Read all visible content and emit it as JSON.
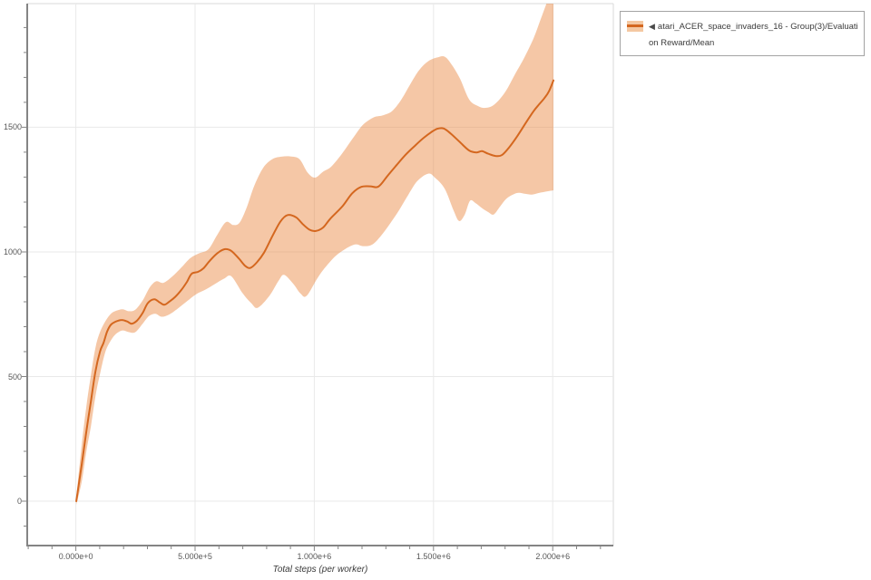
{
  "legend": {
    "marker": "◀",
    "label": "atari_ACER_space_invaders_16 - Group(3)/Evaluation Reward/Mean"
  },
  "chart_data": {
    "type": "line",
    "xlabel": "Total steps (per worker)",
    "ylabel": "",
    "xlim": [
      -204000,
      2254000
    ],
    "ylim": [
      -178,
      1996
    ],
    "grid": "major",
    "x_minor_step": 100000,
    "y_minor_step": 100,
    "x_major_step": 500000,
    "y_major_step": 500,
    "x_ticks": [
      {
        "value": 0,
        "label": "0.000e+0"
      },
      {
        "value": 500000,
        "label": "5.000e+5"
      },
      {
        "value": 1000000,
        "label": "1.000e+6"
      },
      {
        "value": 1500000,
        "label": "1.500e+6"
      },
      {
        "value": 2000000,
        "label": "2.000e+6"
      }
    ],
    "y_ticks": [
      {
        "value": 0,
        "label": "0"
      },
      {
        "value": 500,
        "label": "500"
      },
      {
        "value": 1000,
        "label": "1000"
      },
      {
        "value": 1500,
        "label": "1500"
      }
    ],
    "colors": {
      "line": "#d4671f",
      "band_fill": "rgba(232,131,58,0.45)",
      "gridline": "#e9e9e9",
      "spine": "#848484",
      "border": "#d8d8d8",
      "tick_label": "#575757"
    },
    "series": [
      {
        "name": "atari_ACER_space_invaders_16 - Group(3)/Evaluation Reward/Mean",
        "mean": [
          [
            2000,
            0
          ],
          [
            25000,
            150
          ],
          [
            44000,
            280
          ],
          [
            63000,
            400
          ],
          [
            82000,
            520
          ],
          [
            101000,
            600
          ],
          [
            116000,
            635
          ],
          [
            131000,
            680
          ],
          [
            147000,
            708
          ],
          [
            166000,
            720
          ],
          [
            192000,
            727
          ],
          [
            215000,
            721
          ],
          [
            234000,
            712
          ],
          [
            257000,
            725
          ],
          [
            280000,
            755
          ],
          [
            302000,
            795
          ],
          [
            329000,
            810
          ],
          [
            352000,
            797
          ],
          [
            371000,
            788
          ],
          [
            394000,
            802
          ],
          [
            417000,
            820
          ],
          [
            443000,
            848
          ],
          [
            466000,
            880
          ],
          [
            485000,
            912
          ],
          [
            512000,
            920
          ],
          [
            535000,
            934
          ],
          [
            561000,
            964
          ],
          [
            595000,
            996
          ],
          [
            626000,
            1011
          ],
          [
            652000,
            1004
          ],
          [
            683000,
            974
          ],
          [
            710000,
            944
          ],
          [
            732000,
            936
          ],
          [
            759000,
            958
          ],
          [
            789000,
            997
          ],
          [
            824000,
            1063
          ],
          [
            858000,
            1122
          ],
          [
            888000,
            1148
          ],
          [
            923000,
            1139
          ],
          [
            953000,
            1110
          ],
          [
            980000,
            1089
          ],
          [
            1006000,
            1084
          ],
          [
            1037000,
            1098
          ],
          [
            1067000,
            1133
          ],
          [
            1117000,
            1182
          ],
          [
            1159000,
            1235
          ],
          [
            1197000,
            1261
          ],
          [
            1235000,
            1263
          ],
          [
            1269000,
            1262
          ],
          [
            1307000,
            1305
          ],
          [
            1345000,
            1348
          ],
          [
            1383000,
            1390
          ],
          [
            1421000,
            1425
          ],
          [
            1459000,
            1458
          ],
          [
            1490000,
            1480
          ],
          [
            1516000,
            1494
          ],
          [
            1543000,
            1495
          ],
          [
            1573000,
            1474
          ],
          [
            1611000,
            1440
          ],
          [
            1649000,
            1407
          ],
          [
            1680000,
            1399
          ],
          [
            1703000,
            1404
          ],
          [
            1729000,
            1394
          ],
          [
            1760000,
            1385
          ],
          [
            1786000,
            1388
          ],
          [
            1817000,
            1419
          ],
          [
            1851000,
            1464
          ],
          [
            1889000,
            1521
          ],
          [
            1920000,
            1565
          ],
          [
            1942000,
            1591
          ],
          [
            1965000,
            1617
          ],
          [
            1984000,
            1644
          ],
          [
            2003000,
            1688
          ]
        ],
        "upper": [
          [
            2000,
            15
          ],
          [
            25000,
            230
          ],
          [
            44000,
            380
          ],
          [
            63000,
            505
          ],
          [
            82000,
            615
          ],
          [
            101000,
            678
          ],
          [
            124000,
            722
          ],
          [
            147000,
            752
          ],
          [
            169000,
            764
          ],
          [
            196000,
            770
          ],
          [
            223000,
            762
          ],
          [
            249000,
            768
          ],
          [
            280000,
            805
          ],
          [
            310000,
            858
          ],
          [
            337000,
            882
          ],
          [
            367000,
            876
          ],
          [
            405000,
            902
          ],
          [
            443000,
            938
          ],
          [
            481000,
            976
          ],
          [
            519000,
            995
          ],
          [
            557000,
            1012
          ],
          [
            595000,
            1072
          ],
          [
            630000,
            1120
          ],
          [
            660000,
            1108
          ],
          [
            687000,
            1118
          ],
          [
            717000,
            1180
          ],
          [
            748000,
            1265
          ],
          [
            786000,
            1338
          ],
          [
            824000,
            1372
          ],
          [
            862000,
            1382
          ],
          [
            900000,
            1383
          ],
          [
            938000,
            1372
          ],
          [
            972000,
            1318
          ],
          [
            1003000,
            1298
          ],
          [
            1037000,
            1322
          ],
          [
            1071000,
            1342
          ],
          [
            1117000,
            1395
          ],
          [
            1166000,
            1462
          ],
          [
            1204000,
            1510
          ],
          [
            1250000,
            1540
          ],
          [
            1288000,
            1548
          ],
          [
            1326000,
            1565
          ],
          [
            1364000,
            1610
          ],
          [
            1402000,
            1672
          ],
          [
            1440000,
            1730
          ],
          [
            1478000,
            1765
          ],
          [
            1516000,
            1780
          ],
          [
            1547000,
            1783
          ],
          [
            1577000,
            1750
          ],
          [
            1611000,
            1695
          ],
          [
            1649000,
            1612
          ],
          [
            1687000,
            1585
          ],
          [
            1718000,
            1578
          ],
          [
            1756000,
            1592
          ],
          [
            1801000,
            1642
          ],
          [
            1843000,
            1715
          ],
          [
            1881000,
            1780
          ],
          [
            1920000,
            1858
          ],
          [
            1950000,
            1935
          ],
          [
            1977000,
            2005
          ],
          [
            2003000,
            2070
          ]
        ],
        "lower": [
          [
            2000,
            -15
          ],
          [
            25000,
            80
          ],
          [
            44000,
            200
          ],
          [
            63000,
            300
          ],
          [
            82000,
            420
          ],
          [
            101000,
            510
          ],
          [
            124000,
            600
          ],
          [
            147000,
            645
          ],
          [
            169000,
            672
          ],
          [
            196000,
            685
          ],
          [
            223000,
            678
          ],
          [
            249000,
            678
          ],
          [
            280000,
            712
          ],
          [
            306000,
            742
          ],
          [
            333000,
            752
          ],
          [
            360000,
            740
          ],
          [
            390000,
            748
          ],
          [
            428000,
            773
          ],
          [
            466000,
            802
          ],
          [
            504000,
            830
          ],
          [
            542000,
            848
          ],
          [
            584000,
            872
          ],
          [
            622000,
            893
          ],
          [
            652000,
            902
          ],
          [
            698000,
            836
          ],
          [
            736000,
            794
          ],
          [
            763000,
            776
          ],
          [
            812000,
            824
          ],
          [
            850000,
            884
          ],
          [
            873000,
            908
          ],
          [
            911000,
            873
          ],
          [
            942000,
            833
          ],
          [
            968000,
            824
          ],
          [
            1014000,
            896
          ],
          [
            1052000,
            945
          ],
          [
            1101000,
            993
          ],
          [
            1166000,
            1029
          ],
          [
            1204000,
            1023
          ],
          [
            1242000,
            1029
          ],
          [
            1280000,
            1065
          ],
          [
            1318000,
            1114
          ],
          [
            1356000,
            1168
          ],
          [
            1394000,
            1229
          ],
          [
            1432000,
            1284
          ],
          [
            1478000,
            1314
          ],
          [
            1508000,
            1296
          ],
          [
            1547000,
            1253
          ],
          [
            1585000,
            1164
          ],
          [
            1607000,
            1124
          ],
          [
            1630000,
            1148
          ],
          [
            1653000,
            1205
          ],
          [
            1676000,
            1196
          ],
          [
            1703000,
            1176
          ],
          [
            1729000,
            1160
          ],
          [
            1752000,
            1150
          ],
          [
            1779000,
            1182
          ],
          [
            1805000,
            1213
          ],
          [
            1836000,
            1231
          ],
          [
            1858000,
            1237
          ],
          [
            1885000,
            1233
          ],
          [
            1912000,
            1230
          ],
          [
            1938000,
            1236
          ],
          [
            1965000,
            1241
          ],
          [
            2003000,
            1247
          ]
        ]
      }
    ]
  }
}
